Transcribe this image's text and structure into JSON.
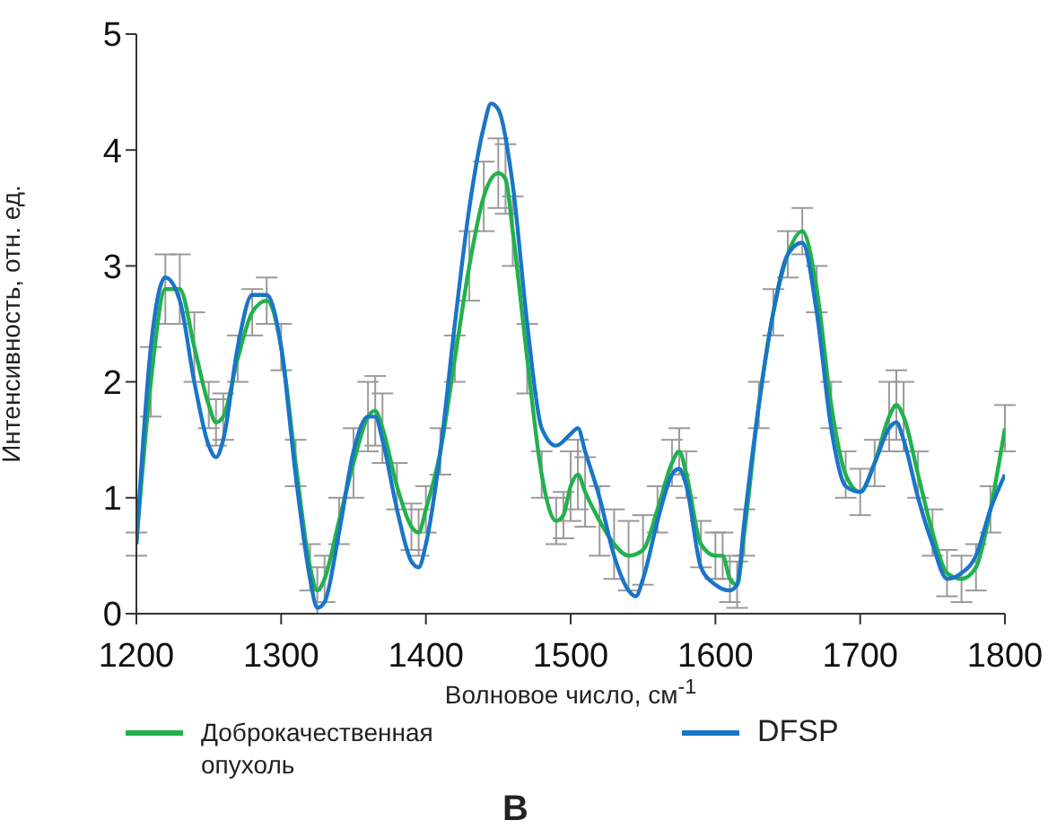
{
  "chart_data": {
    "type": "line",
    "xlabel": "Волновое число, см$^{-1}$",
    "ylabel": "Интенсивность, отн. ед.",
    "xlim": [
      1200,
      1800
    ],
    "xticks": [
      1200,
      1300,
      1400,
      1500,
      1600,
      1700,
      1800
    ],
    "ylim": [
      0,
      5
    ],
    "yticks": [
      0,
      1,
      2,
      3,
      4,
      5
    ],
    "grid": false,
    "legend": "bottom",
    "marker": "none",
    "line_style": "solid",
    "annotations": [
      "В"
    ],
    "series": [
      {
        "name": "Доброкачественная опухоль",
        "color": "#22b14c",
        "x": [
          1200,
          1210,
          1220,
          1230,
          1240,
          1250,
          1255,
          1260,
          1270,
          1280,
          1290,
          1300,
          1310,
          1320,
          1325,
          1330,
          1340,
          1350,
          1360,
          1365,
          1370,
          1380,
          1390,
          1395,
          1400,
          1410,
          1420,
          1430,
          1440,
          1450,
          1455,
          1460,
          1470,
          1480,
          1490,
          1495,
          1500,
          1505,
          1510,
          1520,
          1530,
          1540,
          1550,
          1560,
          1570,
          1575,
          1580,
          1590,
          1600,
          1605,
          1610,
          1615,
          1620,
          1630,
          1640,
          1650,
          1660,
          1670,
          1680,
          1690,
          1700,
          1710,
          1720,
          1725,
          1730,
          1740,
          1750,
          1760,
          1770,
          1780,
          1790,
          1800
        ],
        "values": [
          0.6,
          2.0,
          2.8,
          2.8,
          2.3,
          1.8,
          1.65,
          1.7,
          2.2,
          2.6,
          2.7,
          2.3,
          1.3,
          0.4,
          0.2,
          0.3,
          0.8,
          1.3,
          1.7,
          1.75,
          1.6,
          1.1,
          0.75,
          0.7,
          0.9,
          1.4,
          2.2,
          3.0,
          3.6,
          3.8,
          3.75,
          3.3,
          2.2,
          1.2,
          0.8,
          0.85,
          1.1,
          1.2,
          1.05,
          0.8,
          0.6,
          0.5,
          0.55,
          0.9,
          1.3,
          1.4,
          1.2,
          0.6,
          0.5,
          0.5,
          0.3,
          0.25,
          0.7,
          1.8,
          2.6,
          3.1,
          3.3,
          2.8,
          1.8,
          1.2,
          1.05,
          1.3,
          1.7,
          1.8,
          1.7,
          1.2,
          0.7,
          0.35,
          0.3,
          0.4,
          0.9,
          1.6
        ],
        "errors": [
          0.1,
          0.3,
          0.3,
          0.3,
          0.3,
          0.2,
          0.2,
          0.2,
          0.2,
          0.2,
          0.2,
          0.2,
          0.2,
          0.2,
          0.2,
          0.2,
          0.2,
          0.3,
          0.3,
          0.3,
          0.3,
          0.2,
          0.2,
          0.2,
          0.2,
          0.2,
          0.2,
          0.3,
          0.3,
          0.3,
          0.3,
          0.3,
          0.3,
          0.2,
          0.2,
          0.2,
          0.3,
          0.3,
          0.3,
          0.3,
          0.3,
          0.3,
          0.3,
          0.2,
          0.2,
          0.2,
          0.2,
          0.2,
          0.2,
          0.2,
          0.2,
          0.2,
          0.2,
          0.2,
          0.2,
          0.2,
          0.2,
          0.2,
          0.2,
          0.2,
          0.2,
          0.2,
          0.3,
          0.3,
          0.3,
          0.2,
          0.2,
          0.2,
          0.2,
          0.2,
          0.2,
          0.2
        ]
      },
      {
        "name": "DFSP",
        "color": "#1a75c9",
        "x": [
          1200,
          1210,
          1220,
          1230,
          1240,
          1250,
          1255,
          1260,
          1270,
          1280,
          1290,
          1300,
          1310,
          1320,
          1325,
          1330,
          1340,
          1350,
          1360,
          1365,
          1370,
          1380,
          1390,
          1395,
          1400,
          1410,
          1420,
          1430,
          1440,
          1445,
          1450,
          1460,
          1470,
          1480,
          1490,
          1500,
          1505,
          1510,
          1520,
          1530,
          1540,
          1545,
          1550,
          1560,
          1570,
          1575,
          1580,
          1590,
          1600,
          1610,
          1615,
          1620,
          1630,
          1640,
          1650,
          1660,
          1670,
          1680,
          1690,
          1700,
          1710,
          1720,
          1725,
          1730,
          1740,
          1750,
          1760,
          1770,
          1780,
          1790,
          1800
        ],
        "values": [
          0.6,
          2.3,
          2.9,
          2.7,
          2.0,
          1.45,
          1.35,
          1.5,
          2.3,
          2.75,
          2.75,
          2.3,
          1.2,
          0.3,
          0.05,
          0.1,
          0.7,
          1.4,
          1.7,
          1.7,
          1.5,
          0.9,
          0.45,
          0.4,
          0.6,
          1.4,
          2.5,
          3.5,
          4.2,
          4.4,
          4.35,
          3.7,
          2.5,
          1.6,
          1.45,
          1.55,
          1.6,
          1.4,
          1.0,
          0.5,
          0.2,
          0.15,
          0.3,
          0.8,
          1.2,
          1.25,
          1.1,
          0.4,
          0.25,
          0.2,
          0.25,
          0.8,
          1.8,
          2.6,
          3.1,
          3.2,
          2.6,
          1.6,
          1.1,
          1.05,
          1.3,
          1.6,
          1.65,
          1.5,
          1.0,
          0.6,
          0.3,
          0.35,
          0.5,
          0.9,
          1.2
        ]
      }
    ]
  }
}
